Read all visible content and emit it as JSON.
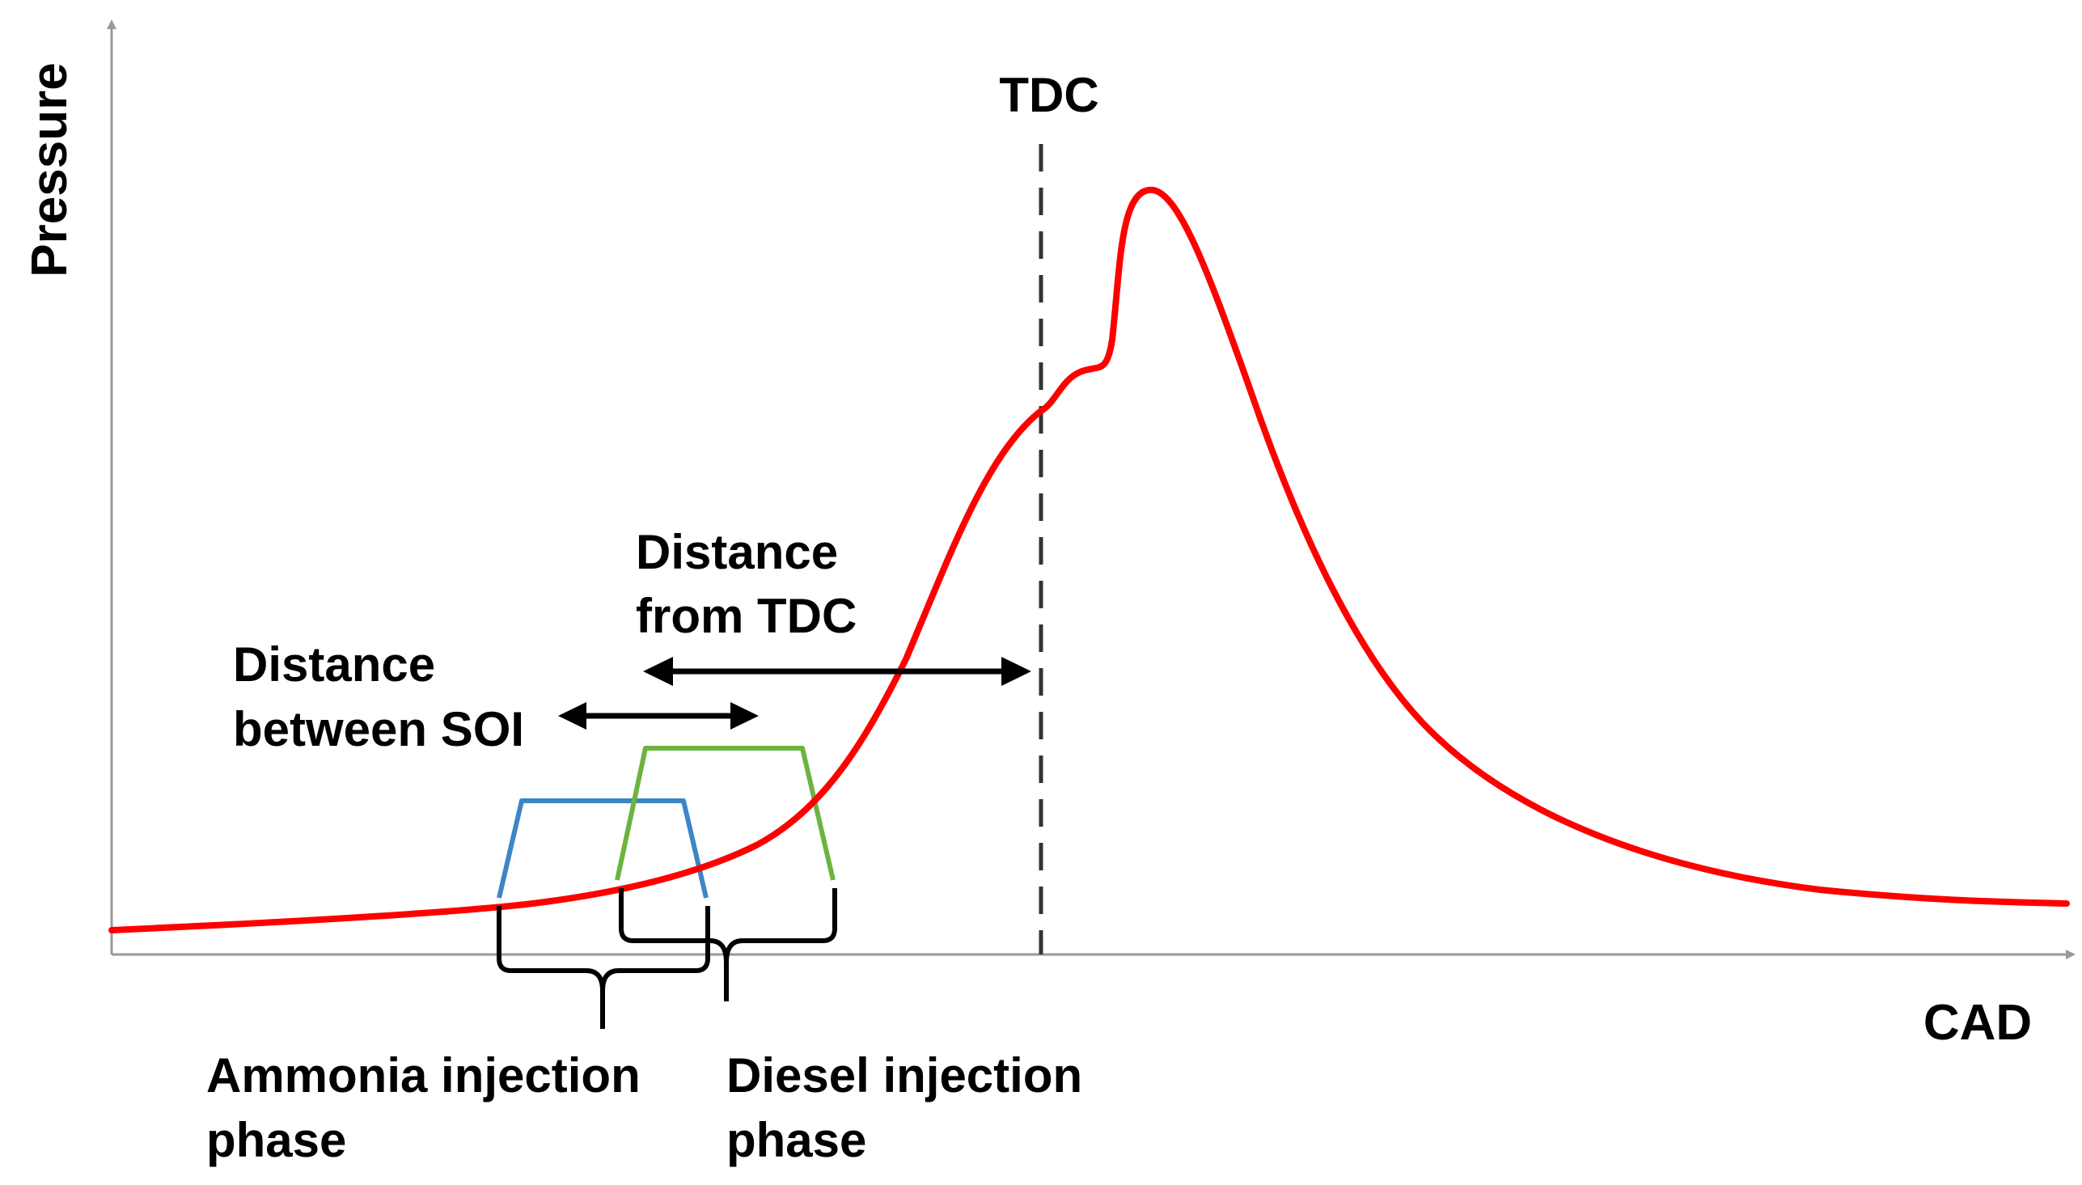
{
  "axes": {
    "y_label": "Pressure",
    "x_label": "CAD"
  },
  "markers": {
    "tdc_label": "TDC"
  },
  "annotations": {
    "distance_from_tdc": [
      "Distance",
      "from TDC"
    ],
    "distance_between_soi": [
      "Distance",
      "between SOI"
    ]
  },
  "phases": {
    "ammonia": {
      "label": [
        "Ammonia injection",
        "phase"
      ],
      "color": "#3D85C6"
    },
    "diesel": {
      "label": [
        "Diesel injection",
        "phase"
      ],
      "color": "#6DB33F"
    }
  },
  "curve": {
    "name": "pressure-curve",
    "color": "#FF0000"
  },
  "colors": {
    "axis": "#999999",
    "bracket": "#000000",
    "tdc_line": "#333333"
  }
}
